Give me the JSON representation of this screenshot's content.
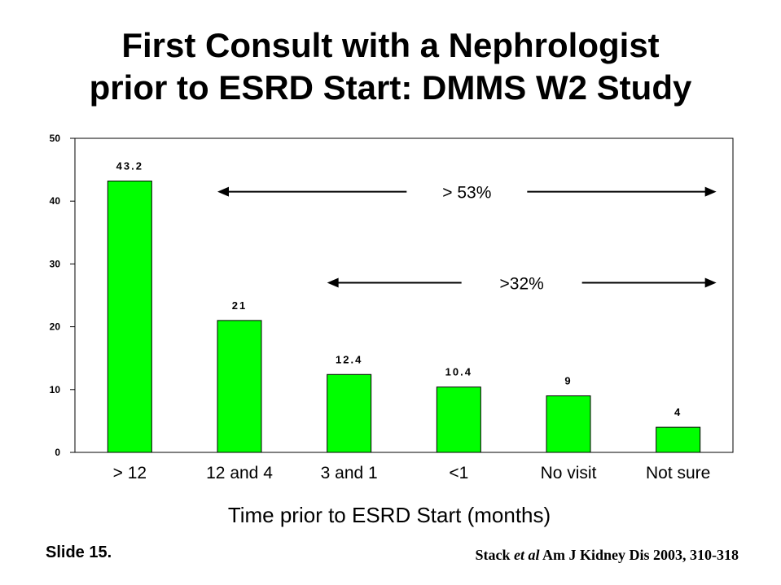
{
  "title_line1": "First Consult with a Nephrologist",
  "title_line2": "prior to ESRD Start: DMMS W2 Study",
  "slide_label": "Slide 15.",
  "citation": {
    "author": "Stack ",
    "etal": "et al",
    "rest": " Am J Kidney Dis 2003, 310-318"
  },
  "chart_data": {
    "type": "bar",
    "categories": [
      "> 12",
      "12 and 4",
      "3 and 1",
      "<1",
      "No visit",
      "Not sure"
    ],
    "values": [
      43.2,
      21,
      12.4,
      10.4,
      9,
      4
    ],
    "data_labels": [
      "43.2",
      "21",
      "12.4",
      "10.4",
      "9",
      "4"
    ],
    "xlabel": "Time prior to ESRD Start (months)",
    "ylim": [
      0,
      50
    ],
    "yticks": [
      0,
      10,
      20,
      30,
      40,
      50
    ],
    "grid": false,
    "bar_color": "#00ff00",
    "annotations": [
      {
        "text": "> 53%",
        "from_category": 1,
        "to_category": 5,
        "y": 41.5
      },
      {
        "text": ">32%",
        "from_category": 2,
        "to_category": 5,
        "y": 27
      }
    ]
  }
}
